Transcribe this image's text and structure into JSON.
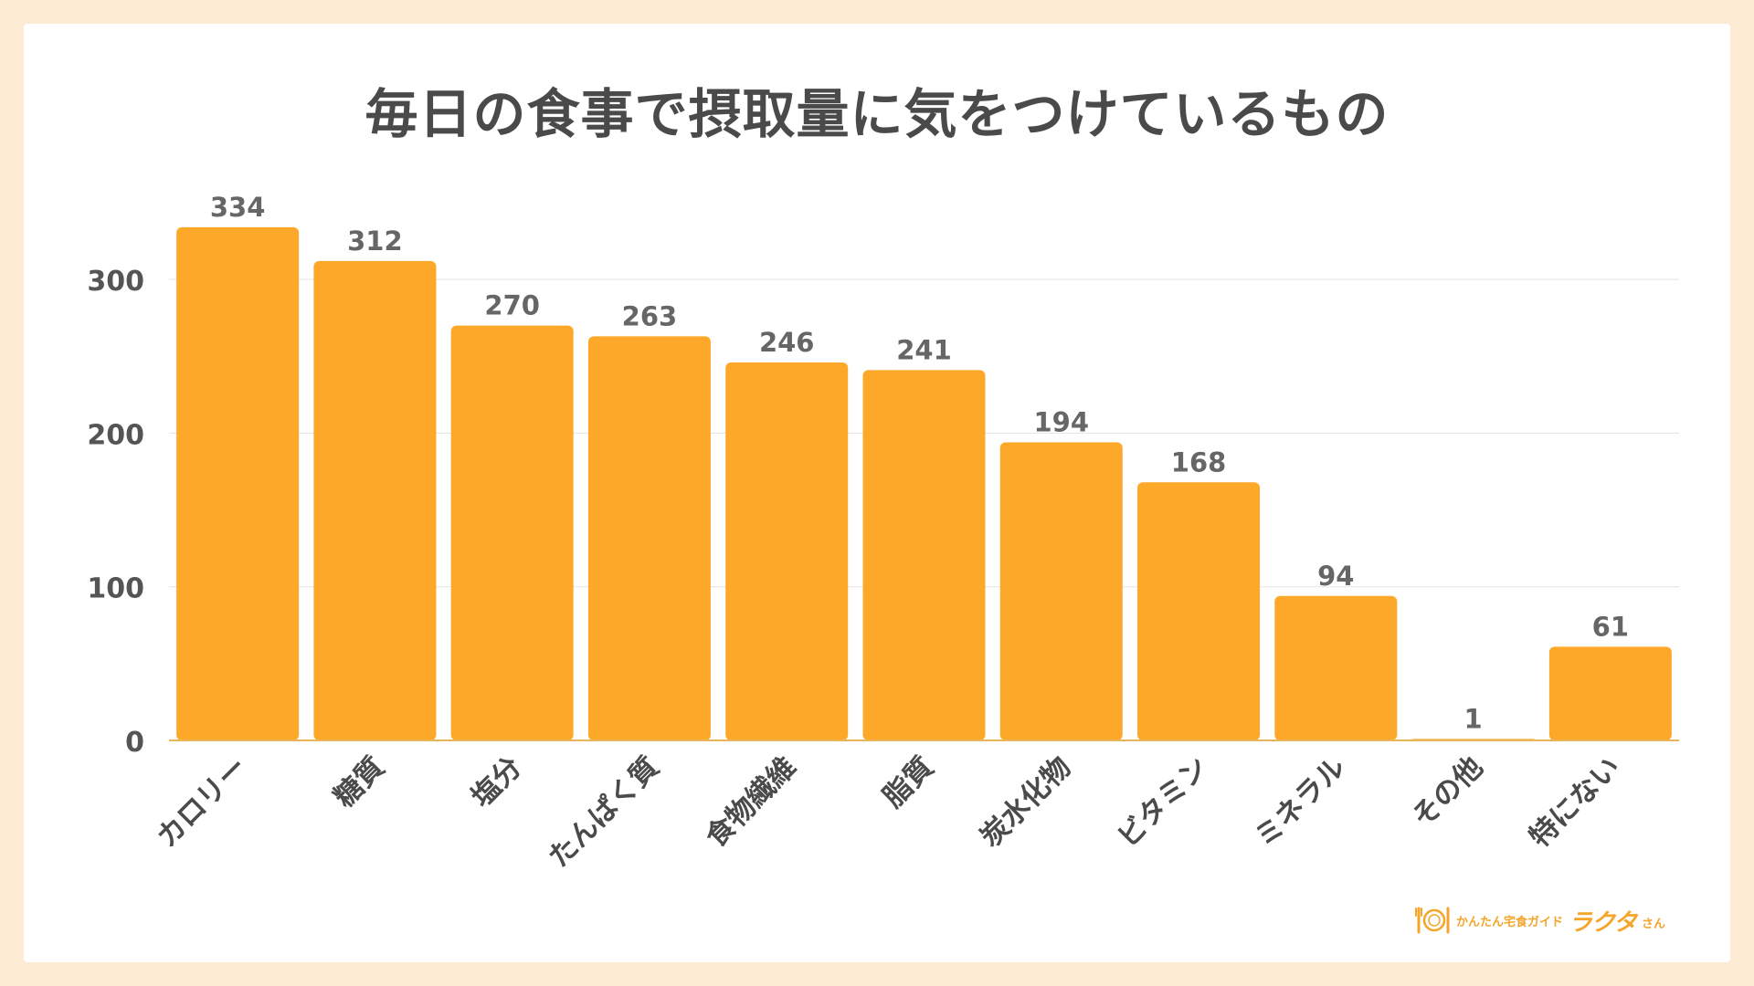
{
  "chart_data": {
    "type": "bar",
    "title": "毎日の食事で摂取量に気をつけているもの",
    "categories": [
      "カロリー",
      "糖質",
      "塩分",
      "たんぱく質",
      "食物繊維",
      "脂質",
      "炭水化物",
      "ビタミン",
      "ミネラル",
      "その他",
      "特にない"
    ],
    "values": [
      334,
      312,
      270,
      263,
      246,
      241,
      194,
      168,
      94,
      1,
      61
    ],
    "yticks": [
      0,
      100,
      200,
      300
    ],
    "ylim": [
      0,
      340
    ],
    "grid": true,
    "bar_color": "#fea82a",
    "label_color": "#666666"
  },
  "logo": {
    "tagline": "かんたん宅食ガイド",
    "brand": "ラクタ",
    "suffix": "さん"
  },
  "colors": {
    "background": "#fdebd3",
    "title": "#4a4a4a",
    "accent": "#f5a52a"
  }
}
